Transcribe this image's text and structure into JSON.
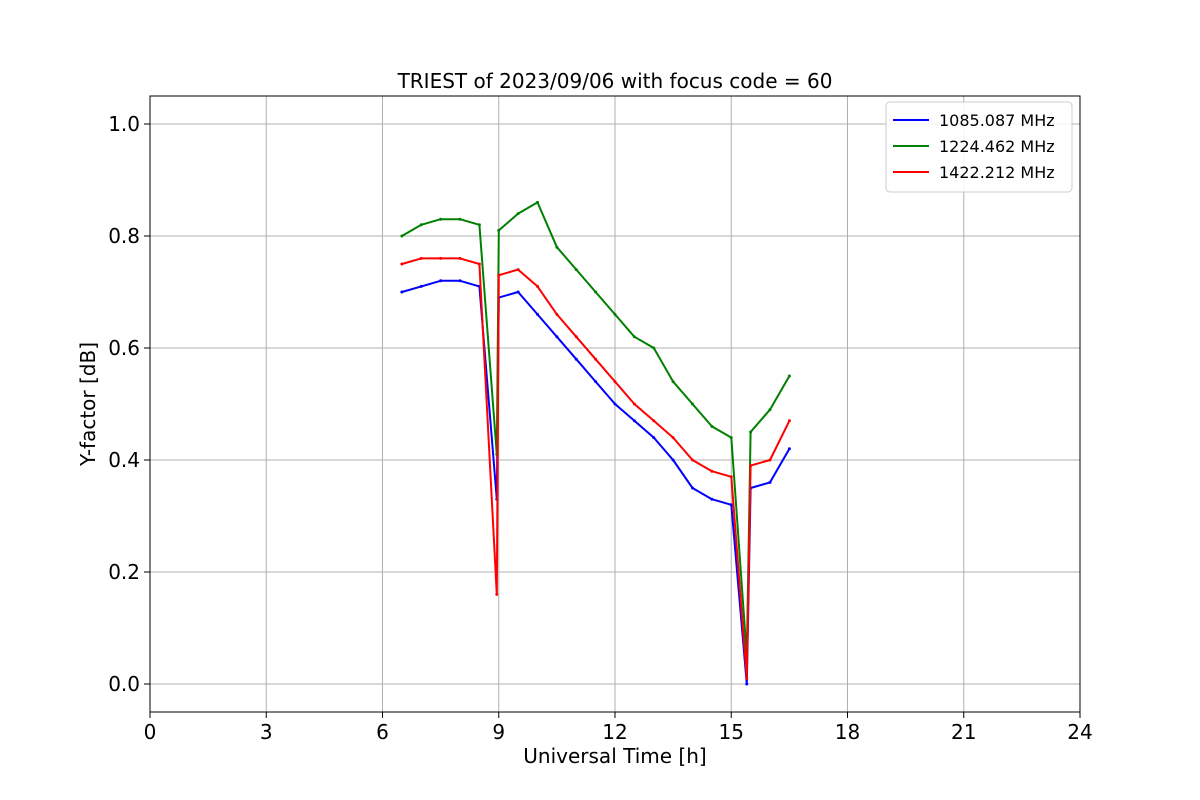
{
  "chart_data": {
    "type": "line",
    "title": "TRIEST of 2023/09/06 with focus code = 60",
    "xlabel": "Universal Time [h]",
    "ylabel": "Y-factor [dB]",
    "xlim": [
      0,
      24
    ],
    "ylim": [
      -0.05,
      1.05
    ],
    "xticks": [
      0,
      3,
      6,
      9,
      12,
      15,
      18,
      21,
      24
    ],
    "yticks": [
      0.0,
      0.2,
      0.4,
      0.6,
      0.8,
      1.0
    ],
    "grid": true,
    "legend_position": "top-right",
    "series": [
      {
        "name": "1085.087 MHz",
        "color": "#0000ff",
        "x": [
          6.5,
          7.0,
          7.5,
          8.0,
          8.5,
          8.95,
          9.0,
          9.5,
          10.0,
          10.5,
          11.0,
          11.5,
          12.0,
          12.5,
          13.0,
          13.5,
          14.0,
          14.5,
          15.0,
          15.4,
          15.5,
          16.0,
          16.5
        ],
        "y": [
          0.7,
          0.71,
          0.72,
          0.72,
          0.71,
          0.33,
          0.69,
          0.7,
          0.66,
          0.62,
          0.58,
          0.54,
          0.5,
          0.47,
          0.44,
          0.4,
          0.35,
          0.33,
          0.32,
          0.0,
          0.35,
          0.36,
          0.42
        ]
      },
      {
        "name": "1224.462 MHz",
        "color": "#008000",
        "x": [
          6.5,
          7.0,
          7.5,
          8.0,
          8.5,
          8.95,
          9.0,
          9.5,
          10.0,
          10.5,
          11.0,
          11.5,
          12.0,
          12.5,
          13.0,
          13.5,
          14.0,
          14.5,
          15.0,
          15.4,
          15.5,
          16.0,
          16.5
        ],
        "y": [
          0.8,
          0.82,
          0.83,
          0.83,
          0.82,
          0.41,
          0.81,
          0.84,
          0.86,
          0.78,
          0.74,
          0.7,
          0.66,
          0.62,
          0.6,
          0.54,
          0.5,
          0.46,
          0.44,
          0.05,
          0.45,
          0.49,
          0.55
        ]
      },
      {
        "name": "1422.212 MHz",
        "color": "#ff0000",
        "x": [
          6.5,
          7.0,
          7.5,
          8.0,
          8.5,
          8.95,
          9.0,
          9.5,
          10.0,
          10.5,
          11.0,
          11.5,
          12.0,
          12.5,
          13.0,
          13.5,
          14.0,
          14.5,
          15.0,
          15.4,
          15.5,
          16.0,
          16.5
        ],
        "y": [
          0.75,
          0.76,
          0.76,
          0.76,
          0.75,
          0.16,
          0.73,
          0.74,
          0.71,
          0.66,
          0.62,
          0.58,
          0.54,
          0.5,
          0.47,
          0.44,
          0.4,
          0.38,
          0.37,
          0.01,
          0.39,
          0.4,
          0.47
        ]
      }
    ]
  }
}
